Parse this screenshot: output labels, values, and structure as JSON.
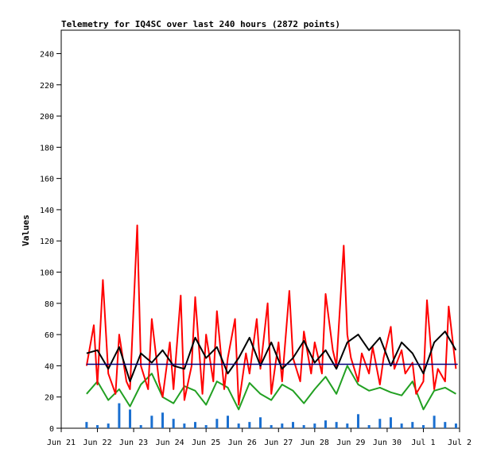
{
  "chart_data": {
    "type": "line",
    "title": "Telemetry for IQ4SC over last 240 hours (2872 points)",
    "xlabel": "",
    "ylabel": "Values",
    "ylim": [
      0,
      255
    ],
    "yticks": [
      0,
      20,
      40,
      60,
      80,
      100,
      120,
      140,
      160,
      180,
      200,
      220,
      240
    ],
    "xticks": [
      "Jun 21",
      "Jun 22",
      "Jun 23",
      "Jun 24",
      "Jun 25",
      "Jun 26",
      "Jun 27",
      "Jun 28",
      "Jun 29",
      "Jun 30",
      "Jul 1",
      "Jul 2"
    ],
    "x_unit": "days from Jun 21 00:00",
    "grid": false,
    "legend": "none",
    "reference_line": {
      "value": 41,
      "color": "#000080"
    },
    "series": [
      {
        "color": "#1a6fd0",
        "style": "spikes",
        "x": [
          0.7,
          1.0,
          1.3,
          1.6,
          1.9,
          2.2,
          2.5,
          2.8,
          3.1,
          3.4,
          3.7,
          4.0,
          4.3,
          4.6,
          4.9,
          5.2,
          5.5,
          5.8,
          6.1,
          6.4,
          6.7,
          7.0,
          7.3,
          7.6,
          7.9,
          8.2,
          8.5,
          8.8,
          9.1,
          9.4,
          9.7,
          10.0,
          10.3,
          10.6,
          10.9
        ],
        "values": [
          4,
          2,
          3,
          16,
          12,
          2,
          8,
          10,
          6,
          3,
          4,
          2,
          6,
          8,
          3,
          4,
          7,
          2,
          3,
          4,
          2,
          3,
          5,
          4,
          3,
          9,
          2,
          6,
          7,
          3,
          4,
          2,
          8,
          4,
          3
        ]
      },
      {
        "color": "#22a022",
        "style": "line",
        "x": [
          0.7,
          1.0,
          1.3,
          1.6,
          1.9,
          2.2,
          2.5,
          2.8,
          3.1,
          3.4,
          3.7,
          4.0,
          4.3,
          4.6,
          4.9,
          5.2,
          5.5,
          5.8,
          6.1,
          6.4,
          6.7,
          7.0,
          7.3,
          7.6,
          7.9,
          8.2,
          8.5,
          8.8,
          9.1,
          9.4,
          9.7,
          10.0,
          10.3,
          10.6,
          10.9
        ],
        "values": [
          22,
          30,
          18,
          25,
          14,
          28,
          35,
          20,
          16,
          27,
          24,
          15,
          30,
          26,
          12,
          29,
          22,
          18,
          28,
          24,
          16,
          25,
          33,
          22,
          40,
          28,
          24,
          26,
          23,
          21,
          30,
          12,
          24,
          26,
          22
        ]
      },
      {
        "color": "#ff0000",
        "style": "line",
        "x": [
          0.7,
          0.9,
          1.0,
          1.15,
          1.3,
          1.5,
          1.6,
          1.8,
          1.9,
          2.1,
          2.2,
          2.4,
          2.5,
          2.7,
          2.8,
          3.0,
          3.1,
          3.3,
          3.4,
          3.6,
          3.7,
          3.9,
          4.0,
          4.2,
          4.3,
          4.5,
          4.6,
          4.8,
          4.9,
          5.1,
          5.2,
          5.4,
          5.5,
          5.7,
          5.8,
          6.0,
          6.1,
          6.3,
          6.4,
          6.6,
          6.7,
          6.9,
          7.0,
          7.2,
          7.3,
          7.5,
          7.6,
          7.8,
          7.9,
          8.0,
          8.2,
          8.3,
          8.5,
          8.6,
          8.8,
          8.9,
          9.1,
          9.2,
          9.4,
          9.5,
          9.7,
          9.8,
          10.0,
          10.1,
          10.3,
          10.4,
          10.6,
          10.7,
          10.9
        ],
        "values": [
          40,
          66,
          28,
          95,
          35,
          22,
          60,
          30,
          25,
          130,
          40,
          25,
          70,
          30,
          20,
          55,
          25,
          85,
          18,
          40,
          84,
          22,
          60,
          30,
          75,
          25,
          45,
          70,
          15,
          48,
          35,
          70,
          38,
          80,
          22,
          55,
          30,
          88,
          45,
          30,
          62,
          35,
          55,
          35,
          86,
          50,
          40,
          117,
          60,
          45,
          30,
          48,
          35,
          52,
          28,
          45,
          65,
          38,
          50,
          35,
          42,
          22,
          30,
          82,
          25,
          38,
          30,
          78,
          38
        ]
      },
      {
        "color": "#000000",
        "style": "line",
        "x": [
          0.7,
          1.0,
          1.3,
          1.6,
          1.9,
          2.2,
          2.5,
          2.8,
          3.1,
          3.4,
          3.7,
          4.0,
          4.3,
          4.6,
          4.9,
          5.2,
          5.5,
          5.8,
          6.1,
          6.4,
          6.7,
          7.0,
          7.3,
          7.6,
          7.9,
          8.2,
          8.5,
          8.8,
          9.1,
          9.4,
          9.7,
          10.0,
          10.3,
          10.6,
          10.9
        ],
        "values": [
          48,
          50,
          38,
          52,
          30,
          48,
          42,
          50,
          40,
          38,
          58,
          45,
          52,
          35,
          45,
          58,
          40,
          55,
          38,
          45,
          56,
          42,
          50,
          38,
          55,
          60,
          50,
          58,
          40,
          55,
          48,
          35,
          55,
          62,
          50
        ]
      }
    ]
  }
}
